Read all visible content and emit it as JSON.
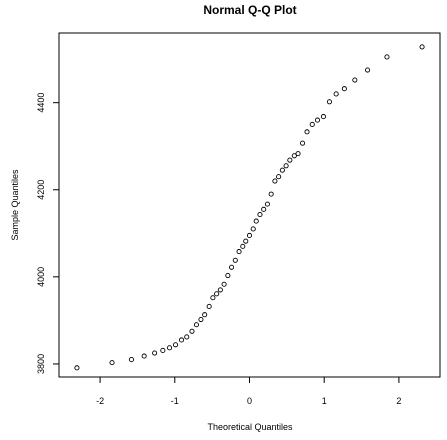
{
  "chart_data": {
    "type": "scatter",
    "title": "Normal Q-Q Plot",
    "xlabel": "Theoretical Quantiles",
    "ylabel": "Sample Quantiles",
    "xlim": [
      -2.55,
      2.55
    ],
    "ylim": [
      3770,
      4560
    ],
    "xticks": [
      -2,
      -1,
      0,
      1,
      2
    ],
    "xtick_labels": [
      "-2",
      "-1",
      "0",
      "1",
      "2"
    ],
    "yticks": [
      3800,
      4000,
      4200,
      4400
    ],
    "ytick_labels": [
      "3800",
      "4000",
      "4200",
      "4400"
    ],
    "grid": false,
    "legend": "none",
    "marker": "open-circle",
    "points": [
      {
        "x": -2.31,
        "y": 3791
      },
      {
        "x": -1.84,
        "y": 3803
      },
      {
        "x": -1.58,
        "y": 3810
      },
      {
        "x": -1.41,
        "y": 3818
      },
      {
        "x": -1.27,
        "y": 3825
      },
      {
        "x": -1.16,
        "y": 3831
      },
      {
        "x": -1.07,
        "y": 3837
      },
      {
        "x": -0.99,
        "y": 3844
      },
      {
        "x": -0.91,
        "y": 3855
      },
      {
        "x": -0.84,
        "y": 3862
      },
      {
        "x": -0.77,
        "y": 3875
      },
      {
        "x": -0.71,
        "y": 3890
      },
      {
        "x": -0.65,
        "y": 3902
      },
      {
        "x": -0.6,
        "y": 3913
      },
      {
        "x": -0.54,
        "y": 3932
      },
      {
        "x": -0.49,
        "y": 3952
      },
      {
        "x": -0.44,
        "y": 3961
      },
      {
        "x": -0.39,
        "y": 3970
      },
      {
        "x": -0.34,
        "y": 3983
      },
      {
        "x": -0.29,
        "y": 4003
      },
      {
        "x": -0.24,
        "y": 4022
      },
      {
        "x": -0.19,
        "y": 4038
      },
      {
        "x": -0.14,
        "y": 4058
      },
      {
        "x": -0.09,
        "y": 4070
      },
      {
        "x": -0.05,
        "y": 4082
      },
      {
        "x": 0.0,
        "y": 4095
      },
      {
        "x": 0.05,
        "y": 4110
      },
      {
        "x": 0.09,
        "y": 4128
      },
      {
        "x": 0.14,
        "y": 4143
      },
      {
        "x": 0.19,
        "y": 4155
      },
      {
        "x": 0.24,
        "y": 4167
      },
      {
        "x": 0.29,
        "y": 4190
      },
      {
        "x": 0.34,
        "y": 4220
      },
      {
        "x": 0.39,
        "y": 4230
      },
      {
        "x": 0.44,
        "y": 4245
      },
      {
        "x": 0.49,
        "y": 4255
      },
      {
        "x": 0.54,
        "y": 4268
      },
      {
        "x": 0.6,
        "y": 4278
      },
      {
        "x": 0.65,
        "y": 4283
      },
      {
        "x": 0.71,
        "y": 4307
      },
      {
        "x": 0.77,
        "y": 4333
      },
      {
        "x": 0.84,
        "y": 4350
      },
      {
        "x": 0.91,
        "y": 4360
      },
      {
        "x": 0.99,
        "y": 4368
      },
      {
        "x": 1.07,
        "y": 4402
      },
      {
        "x": 1.16,
        "y": 4420
      },
      {
        "x": 1.27,
        "y": 4432
      },
      {
        "x": 1.41,
        "y": 4452
      },
      {
        "x": 1.58,
        "y": 4475
      },
      {
        "x": 1.84,
        "y": 4505
      },
      {
        "x": 2.31,
        "y": 4528
      }
    ]
  }
}
